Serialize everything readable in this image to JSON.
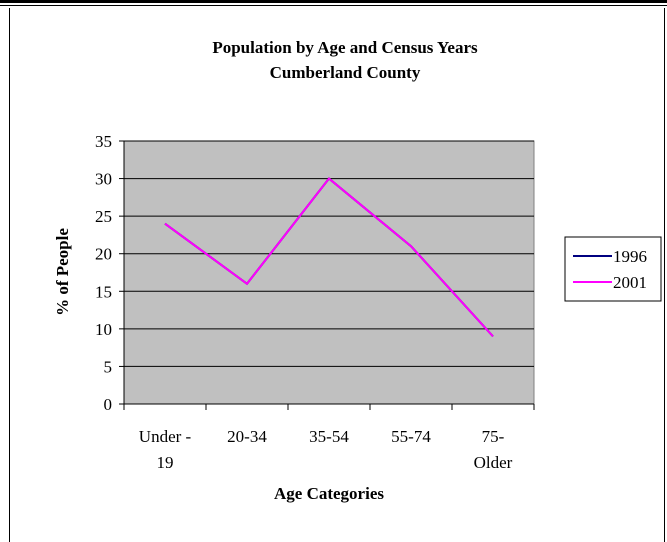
{
  "chart_data": {
    "type": "line",
    "title": "Population by Age and Census Years",
    "subtitle": "Cumberland County",
    "xlabel": "Age Categories",
    "ylabel": "% of People",
    "ylim": [
      0,
      35
    ],
    "yticks": [
      0,
      5,
      10,
      15,
      20,
      25,
      30,
      35
    ],
    "categories": [
      [
        "Under -",
        "19"
      ],
      [
        "20-34"
      ],
      [
        "35-54"
      ],
      [
        "55-74"
      ],
      [
        "75-",
        "Older"
      ]
    ],
    "series": [
      {
        "name": "1996",
        "color": "#000080",
        "values": [
          24,
          16,
          30,
          21,
          9
        ]
      },
      {
        "name": "2001",
        "color": "#ff00ff",
        "values": [
          24,
          16,
          30,
          21,
          9
        ]
      }
    ],
    "grid": true,
    "plot_background": "#c0c0c0",
    "legend": "right"
  }
}
